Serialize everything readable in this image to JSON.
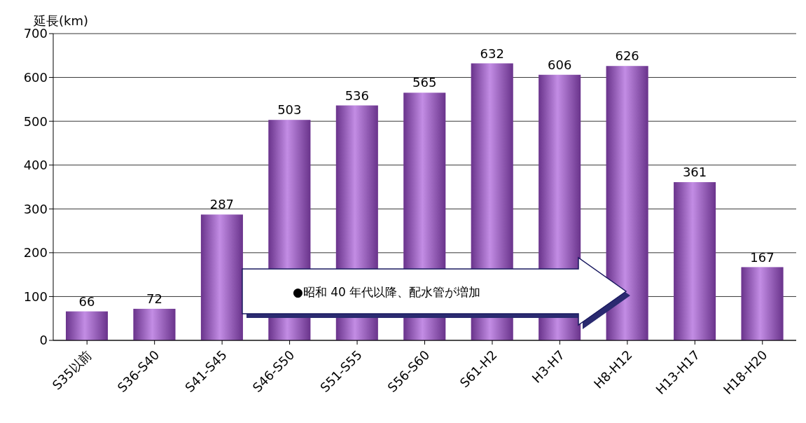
{
  "chart_data": {
    "type": "bar",
    "ylabel": "延長(km)",
    "categories": [
      "S35以前",
      "S36-S40",
      "S41-S45",
      "S46-S50",
      "S51-S55",
      "S56-S60",
      "S61-H2",
      "H3-H7",
      "H8-H12",
      "H13-H17",
      "H18-H20"
    ],
    "values": [
      66,
      72,
      287,
      503,
      536,
      565,
      632,
      606,
      626,
      361,
      167
    ],
    "color": "#a24fd6",
    "ylim": [
      0,
      700
    ],
    "yticks": [
      0,
      100,
      200,
      300,
      400,
      500,
      600,
      700
    ],
    "grid": "y",
    "data_labels": true,
    "annotations": [
      "●昭和 40 年代以降、配水管が増加"
    ]
  }
}
